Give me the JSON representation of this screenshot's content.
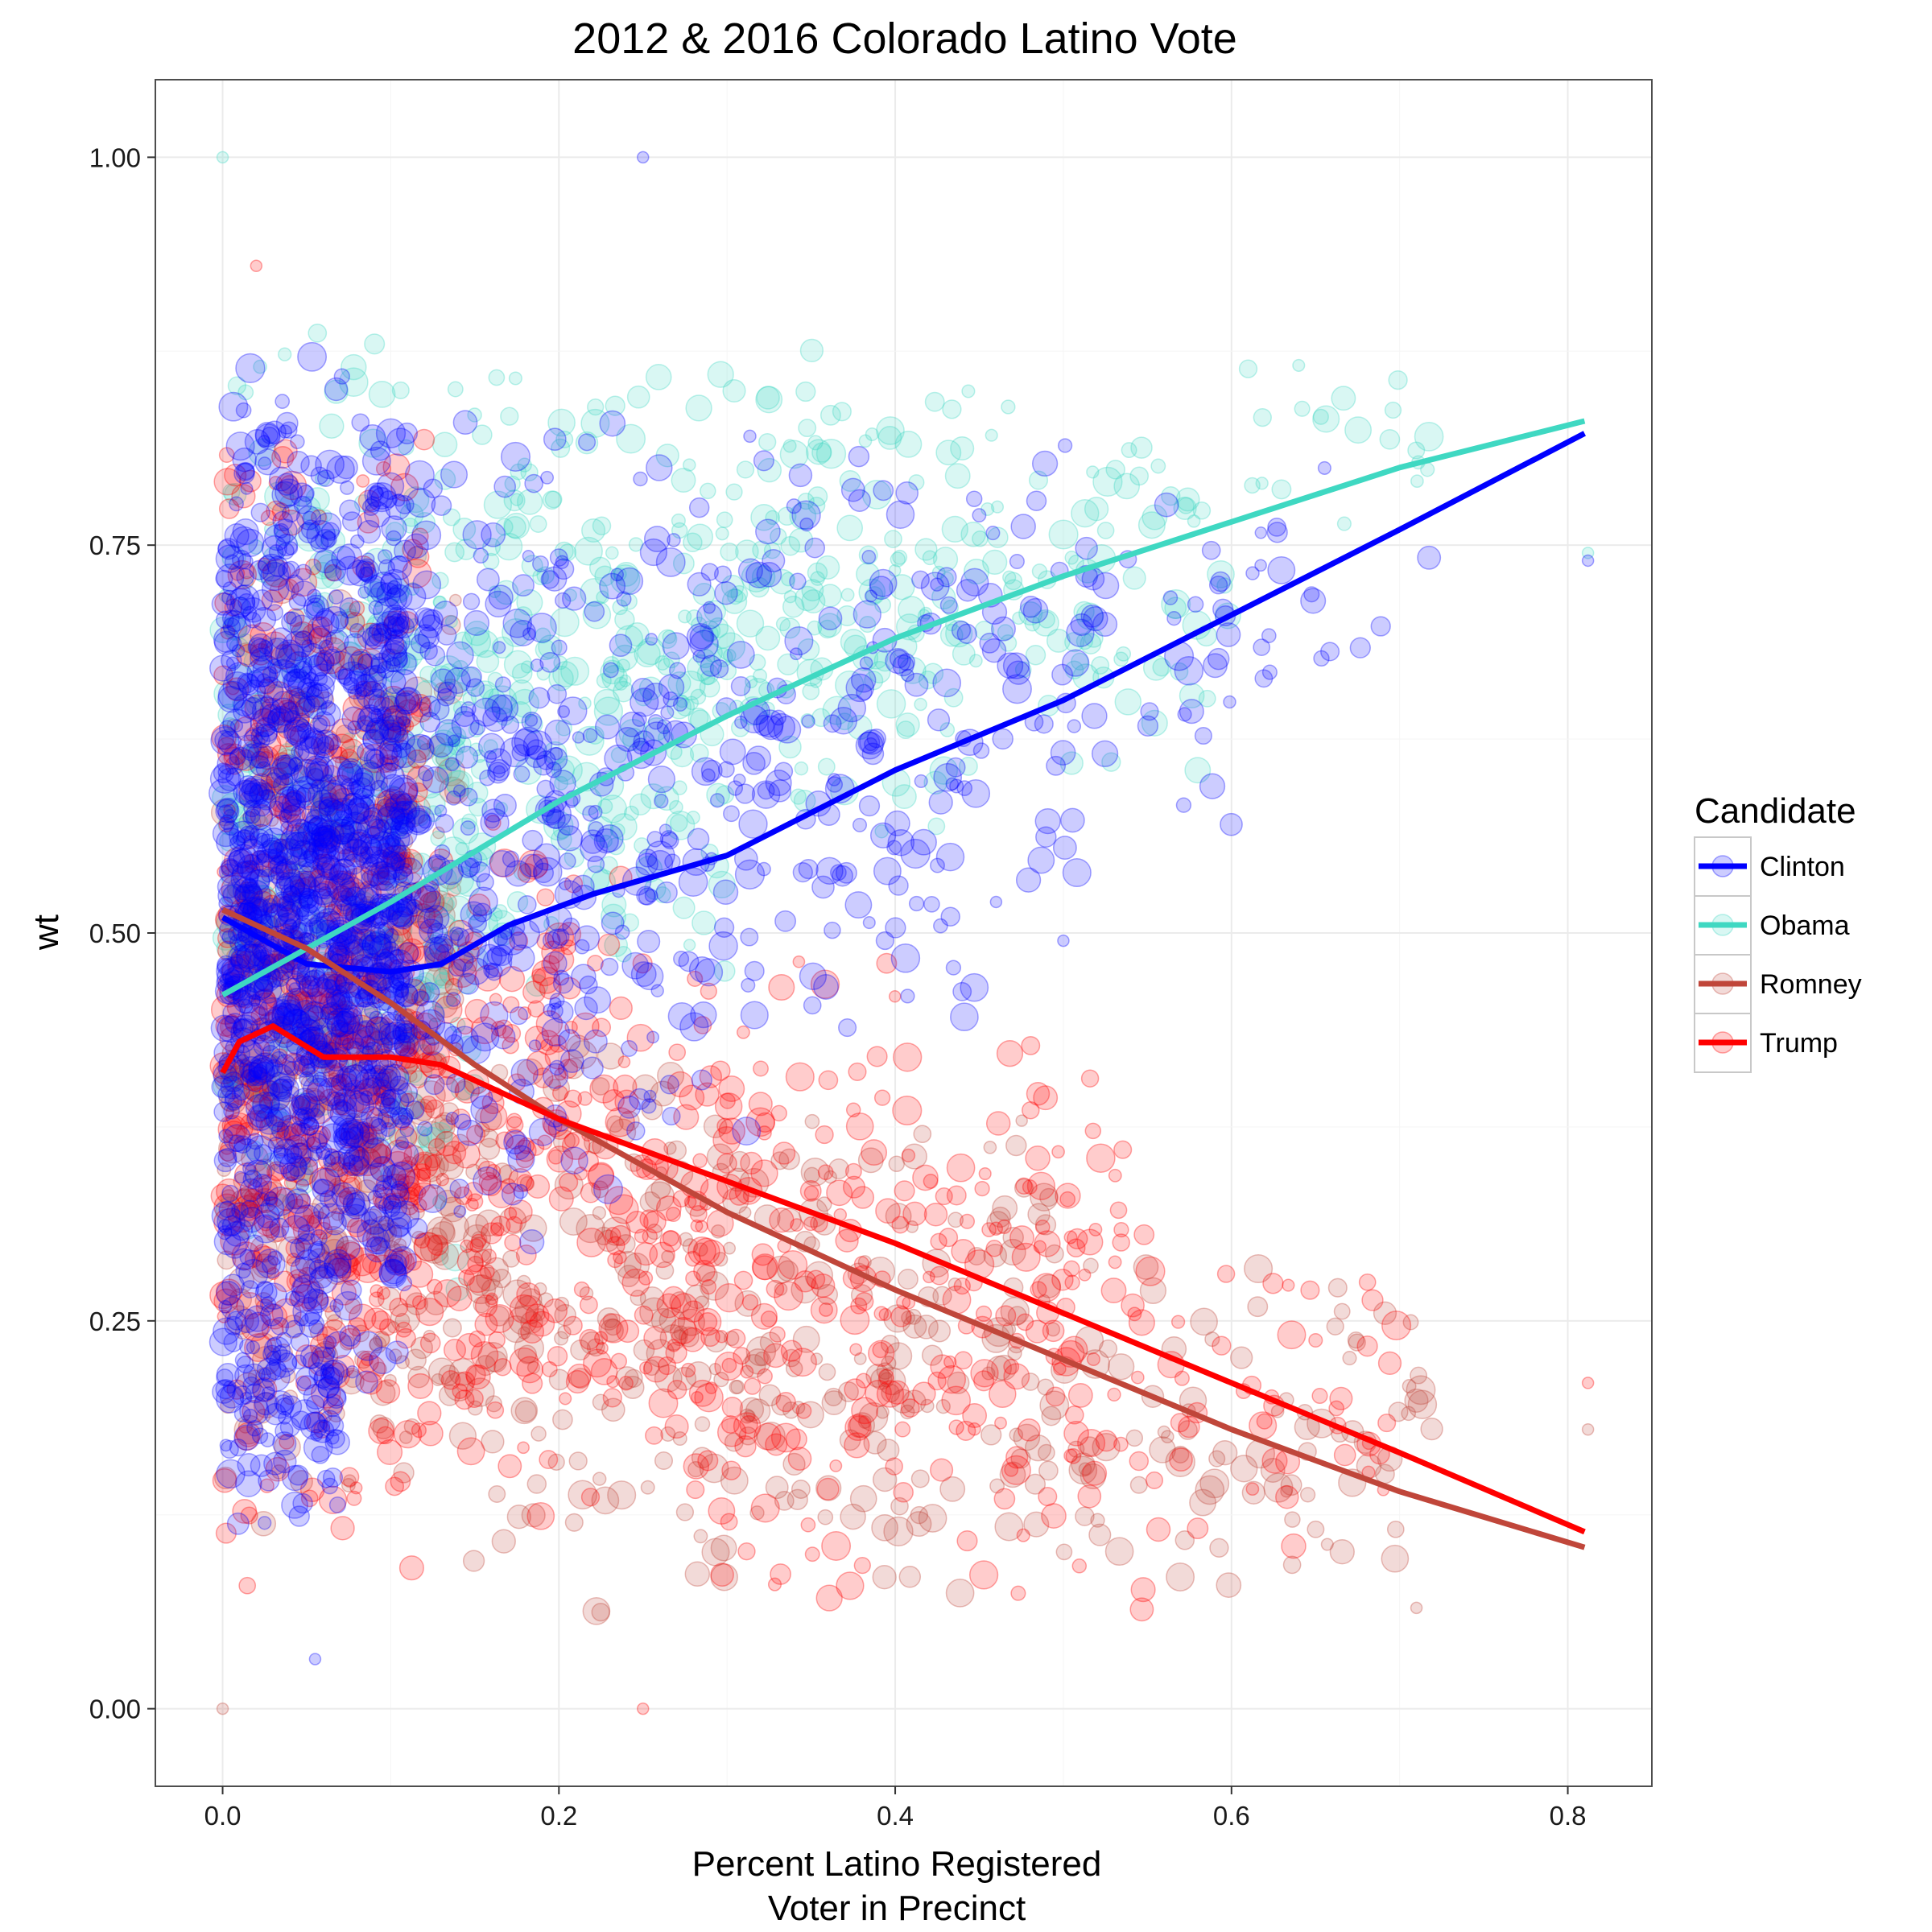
{
  "chart_data": {
    "type": "scatter",
    "title": "2012 & 2016 Colorado Latino Vote",
    "xlabel_lines": [
      "Percent Latino Registered",
      "Voter in Precinct"
    ],
    "ylabel": "wt",
    "xlim": [
      -0.04,
      0.85
    ],
    "ylim": [
      -0.05,
      1.05
    ],
    "x_ticks": [
      0.0,
      0.2,
      0.4,
      0.6,
      0.8
    ],
    "x_tick_labels": [
      "0.0",
      "0.2",
      "0.4",
      "0.6",
      "0.8"
    ],
    "y_ticks": [
      0.0,
      0.25,
      0.5,
      0.75,
      1.0
    ],
    "y_tick_labels": [
      "0.00",
      "0.25",
      "0.50",
      "0.75",
      "1.00"
    ],
    "grid": true,
    "point_alpha": 0.2,
    "legend": {
      "title": "Candidate",
      "placement": "right"
    },
    "series": [
      {
        "name": "Clinton",
        "color": "#0000ff",
        "smooth": [
          [
            0.0,
            0.51
          ],
          [
            0.05,
            0.48
          ],
          [
            0.1,
            0.475
          ],
          [
            0.13,
            0.48
          ],
          [
            0.17,
            0.505
          ],
          [
            0.22,
            0.525
          ],
          [
            0.3,
            0.55
          ],
          [
            0.4,
            0.605
          ],
          [
            0.5,
            0.65
          ],
          [
            0.6,
            0.705
          ],
          [
            0.7,
            0.76
          ],
          [
            0.81,
            0.822
          ]
        ],
        "clusters": [
          {
            "x": [
              0.0,
              0.11
            ],
            "y": [
              0.2,
              0.88
            ],
            "n": 1300
          },
          {
            "x": [
              0.0,
              0.07
            ],
            "y": [
              0.1,
              0.3
            ],
            "n": 120
          },
          {
            "x": [
              0.1,
              0.2
            ],
            "y": [
              0.28,
              0.85
            ],
            "n": 260
          },
          {
            "x": [
              0.2,
              0.32
            ],
            "y": [
              0.3,
              0.85
            ],
            "n": 180
          },
          {
            "x": [
              0.32,
              0.45
            ],
            "y": [
              0.42,
              0.84
            ],
            "n": 130
          },
          {
            "x": [
              0.45,
              0.6
            ],
            "y": [
              0.5,
              0.85
            ],
            "n": 70
          },
          {
            "x": [
              0.6,
              0.72
            ],
            "y": [
              0.6,
              0.82
            ],
            "n": 18
          }
        ],
        "points": [
          [
            0.25,
            1.0
          ],
          [
            0.055,
            0.032
          ],
          [
            0.812,
            0.74
          ],
          [
            0.5,
            0.495
          ],
          [
            0.46,
            0.52
          ]
        ]
      },
      {
        "name": "Obama",
        "color": "#3fd8c2",
        "smooth": [
          [
            0.0,
            0.46
          ],
          [
            0.05,
            0.49
          ],
          [
            0.1,
            0.52
          ],
          [
            0.2,
            0.585
          ],
          [
            0.3,
            0.64
          ],
          [
            0.4,
            0.69
          ],
          [
            0.5,
            0.73
          ],
          [
            0.6,
            0.765
          ],
          [
            0.7,
            0.8
          ],
          [
            0.81,
            0.83
          ]
        ],
        "clusters": [
          {
            "x": [
              0.0,
              0.15
            ],
            "y": [
              0.25,
              0.92
            ],
            "n": 400
          },
          {
            "x": [
              0.15,
              0.3
            ],
            "y": [
              0.45,
              0.88
            ],
            "n": 230
          },
          {
            "x": [
              0.3,
              0.45
            ],
            "y": [
              0.55,
              0.88
            ],
            "n": 160
          },
          {
            "x": [
              0.45,
              0.6
            ],
            "y": [
              0.6,
              0.86
            ],
            "n": 80
          },
          {
            "x": [
              0.6,
              0.72
            ],
            "y": [
              0.75,
              0.87
            ],
            "n": 20
          }
        ],
        "points": [
          [
            0.0,
            1.0
          ],
          [
            0.812,
            0.745
          ]
        ]
      },
      {
        "name": "Romney",
        "color": "#c0463a",
        "smooth": [
          [
            0.0,
            0.515
          ],
          [
            0.05,
            0.49
          ],
          [
            0.1,
            0.455
          ],
          [
            0.15,
            0.415
          ],
          [
            0.2,
            0.38
          ],
          [
            0.3,
            0.32
          ],
          [
            0.4,
            0.27
          ],
          [
            0.5,
            0.225
          ],
          [
            0.6,
            0.18
          ],
          [
            0.7,
            0.14
          ],
          [
            0.81,
            0.104
          ]
        ],
        "clusters": [
          {
            "x": [
              0.0,
              0.14
            ],
            "y": [
              0.1,
              0.75
            ],
            "n": 450
          },
          {
            "x": [
              0.14,
              0.3
            ],
            "y": [
              0.05,
              0.45
            ],
            "n": 180
          },
          {
            "x": [
              0.3,
              0.5
            ],
            "y": [
              0.05,
              0.4
            ],
            "n": 170
          },
          {
            "x": [
              0.5,
              0.72
            ],
            "y": [
              0.05,
              0.3
            ],
            "n": 90
          }
        ],
        "points": [
          [
            0.0,
            0.0
          ],
          [
            0.812,
            0.18
          ],
          [
            0.71,
            0.065
          ]
        ]
      },
      {
        "name": "Trump",
        "color": "#ff0000",
        "smooth": [
          [
            0.0,
            0.41
          ],
          [
            0.01,
            0.43
          ],
          [
            0.03,
            0.44
          ],
          [
            0.06,
            0.42
          ],
          [
            0.1,
            0.42
          ],
          [
            0.13,
            0.415
          ],
          [
            0.2,
            0.38
          ],
          [
            0.3,
            0.34
          ],
          [
            0.4,
            0.3
          ],
          [
            0.5,
            0.255
          ],
          [
            0.6,
            0.21
          ],
          [
            0.7,
            0.165
          ],
          [
            0.81,
            0.114
          ]
        ],
        "clusters": [
          {
            "x": [
              0.0,
              0.12
            ],
            "y": [
              0.07,
              0.85
            ],
            "n": 650
          },
          {
            "x": [
              0.12,
              0.25
            ],
            "y": [
              0.1,
              0.6
            ],
            "n": 230
          },
          {
            "x": [
              0.25,
              0.4
            ],
            "y": [
              0.05,
              0.5
            ],
            "n": 200
          },
          {
            "x": [
              0.4,
              0.55
            ],
            "y": [
              0.05,
              0.45
            ],
            "n": 140
          },
          {
            "x": [
              0.55,
              0.7
            ],
            "y": [
              0.1,
              0.3
            ],
            "n": 45
          }
        ],
        "points": [
          [
            0.02,
            0.93
          ],
          [
            0.25,
            0.0
          ],
          [
            0.812,
            0.21
          ]
        ]
      }
    ]
  }
}
